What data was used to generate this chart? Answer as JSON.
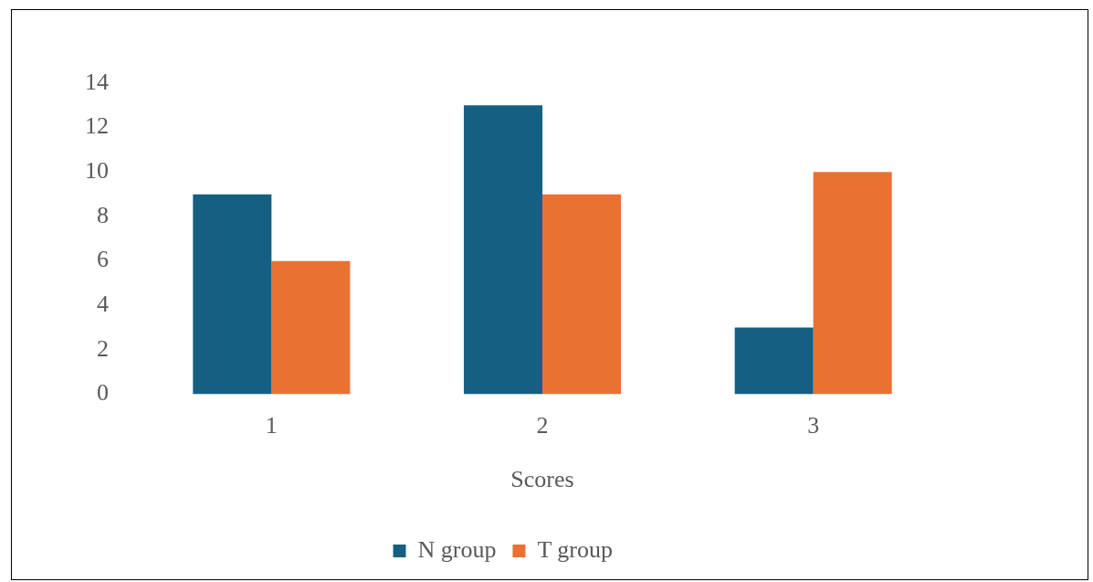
{
  "chart_data": {
    "type": "bar",
    "xlabel": "Scores",
    "categories": [
      "1",
      "2",
      "3"
    ],
    "series": [
      {
        "name": "N group",
        "color": "#156082",
        "values": [
          9,
          13,
          3
        ]
      },
      {
        "name": "T group",
        "color": "#e97132",
        "values": [
          6,
          9,
          10
        ]
      }
    ],
    "ylim": [
      0,
      14
    ],
    "yticks": [
      0,
      2,
      4,
      6,
      8,
      10,
      12,
      14
    ],
    "grid": false,
    "legend": "bottom"
  }
}
